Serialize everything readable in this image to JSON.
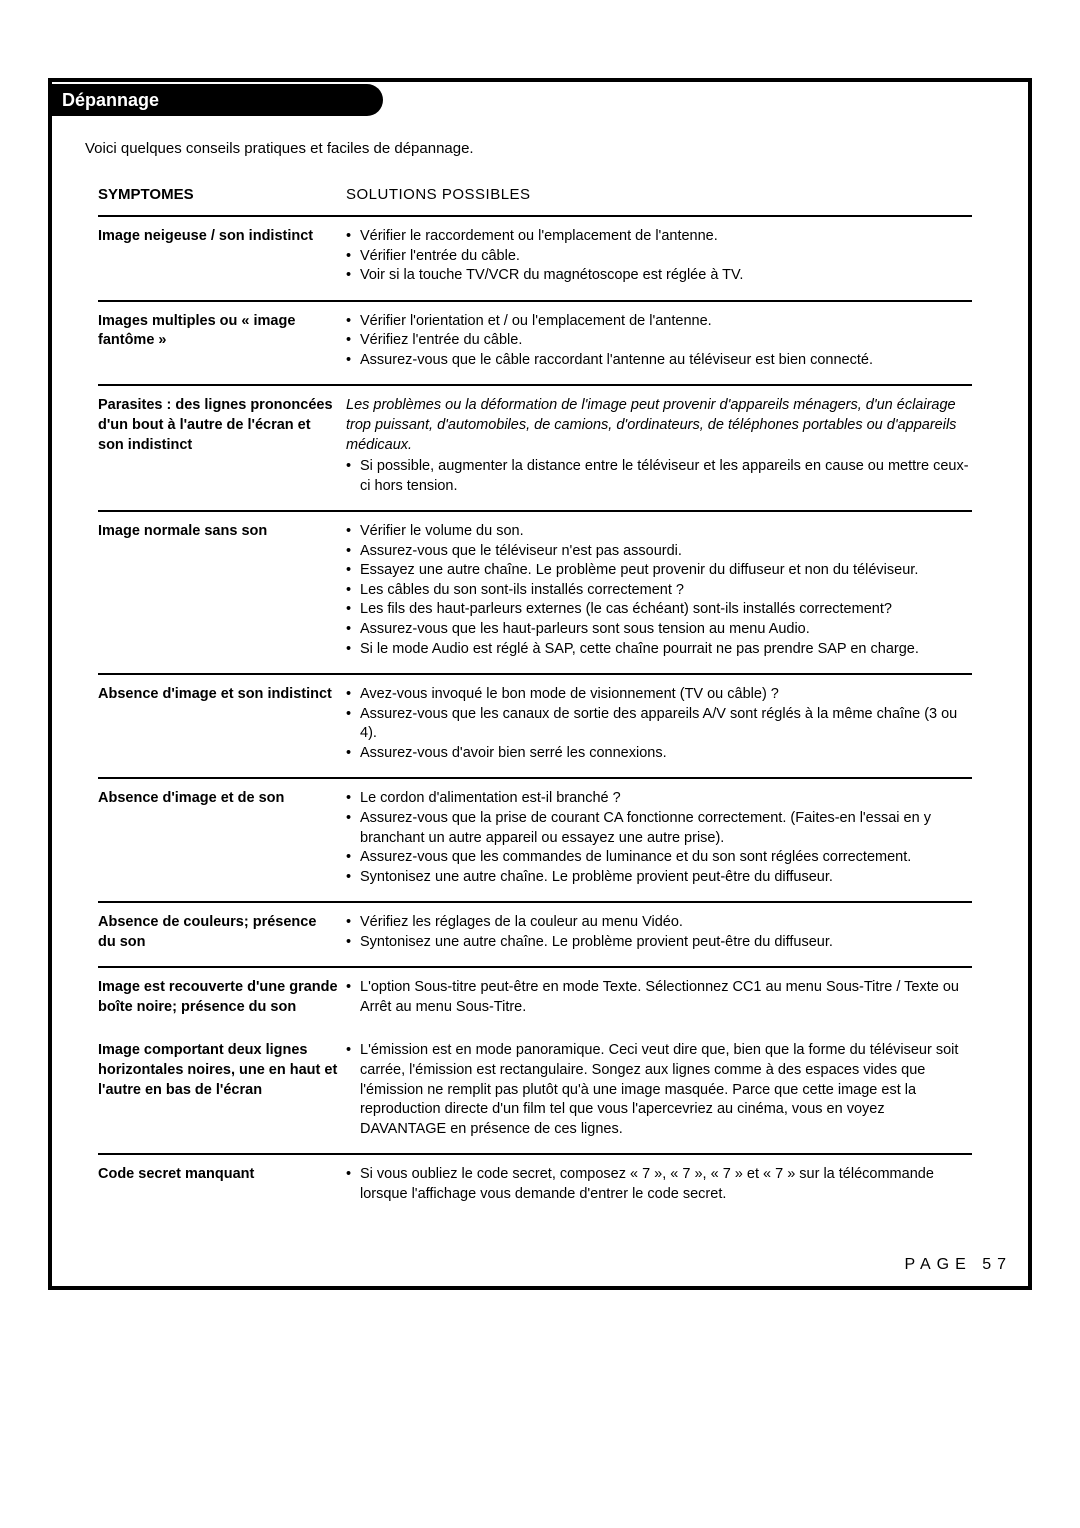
{
  "header": {
    "title": "Dépannage"
  },
  "intro": "Voici quelques conseils pratiques et faciles de dépannage.",
  "columns": {
    "symptom": "SYMPTOMES",
    "solutions": "SOLUTIONS POSSIBLES"
  },
  "rows": [
    {
      "symptom": "Image neigeuse / son indistinct",
      "intro": null,
      "bullets": [
        "Vérifier le raccordement ou l'emplacement de l'antenne.",
        "Vérifier l'entrée du câble.",
        "Voir si la touche TV/VCR du magnétoscope est réglée à TV."
      ]
    },
    {
      "symptom": "Images multiples ou « image fantôme »",
      "intro": null,
      "bullets": [
        "Vérifier l'orientation et / ou l'emplacement de l'antenne.",
        "Vérifiez l'entrée du câble.",
        "Assurez-vous que le câble raccordant l'antenne au téléviseur est bien connecté."
      ]
    },
    {
      "symptom": "Parasites : des lignes prononcées d'un bout à l'autre de l'écran et son indistinct",
      "intro": "Les problèmes ou la déformation de l'image peut provenir d'appareils ménagers, d'un éclairage trop puissant, d'automobiles, de camions, d'ordinateurs, de téléphones portables ou d'appareils médicaux.",
      "bullets": [
        "Si possible, augmenter la distance entre le téléviseur et les appareils en cause ou mettre ceux-ci hors tension."
      ]
    },
    {
      "symptom": "Image normale sans son",
      "intro": null,
      "bullets": [
        "Vérifier le volume du son.",
        "Assurez-vous que le téléviseur n'est pas assourdi.",
        "Essayez une autre chaîne. Le problème peut provenir du diffuseur et non du téléviseur.",
        "Les câbles du son sont-ils installés correctement ?",
        "Les fils des haut-parleurs externes (le cas échéant) sont-ils installés correctement?",
        "Assurez-vous que les haut-parleurs sont sous tension au menu Audio.",
        "Si le mode Audio est réglé à SAP, cette chaîne pourrait ne pas prendre SAP en charge."
      ]
    },
    {
      "symptom": "Absence d'image et son indistinct",
      "intro": null,
      "bullets": [
        "Avez-vous invoqué le bon mode de visionnement (TV ou câble) ?",
        "Assurez-vous que les canaux de sortie des appareils A/V sont réglés à la même chaîne (3 ou 4).",
        "Assurez-vous d'avoir bien serré les connexions."
      ]
    },
    {
      "symptom": "Absence d'image et de son",
      "intro": null,
      "bullets": [
        "Le cordon d'alimentation est-il branché ?",
        "Assurez-vous que la prise de courant CA fonctionne correctement. (Faites-en l'essai en y branchant un autre appareil ou essayez une autre prise).",
        "Assurez-vous que les commandes de luminance et du son sont réglées correctement.",
        "Syntonisez une autre chaîne. Le problème provient peut-être du diffuseur."
      ]
    },
    {
      "symptom": "Absence de couleurs; présence du son",
      "intro": null,
      "bullets": [
        "Vérifiez les réglages de la couleur au menu Vidéo.",
        "Syntonisez une autre chaîne. Le problème provient peut-être du diffuseur."
      ]
    },
    {
      "symptom": "Image est recouverte d'une grande boîte noire; présence du son",
      "intro": null,
      "bullets": [
        "L'option Sous-titre peut-être en mode Texte. Sélectionnez CC1 au menu Sous-Titre / Texte ou Arrêt au menu Sous-Titre."
      ]
    },
    {
      "symptom": "Image comportant deux lignes horizontales noires, une en haut et l'autre en bas de l'écran",
      "intro": null,
      "bullets": [
        "L'émission est en mode panoramique. Ceci veut dire que, bien que la forme du téléviseur soit carrée, l'émission est rectangulaire. Songez aux lignes comme à des espaces vides que l'émission ne remplit pas plutôt qu'à une image masquée. Parce que cette image est la reproduction directe d'un film tel que vous l'apercevriez au cinéma, vous en voyez DAVANTAGE en présence de ces lignes."
      ],
      "noborder": true
    },
    {
      "symptom": "Code secret manquant",
      "intro": null,
      "bullets": [
        "Si vous oubliez le code secret, composez « 7 », « 7 », « 7 » et « 7 » sur la télécommande lorsque l'affichage vous demande d'entrer le code secret."
      ]
    }
  ],
  "page_number": "PAGE 57"
}
